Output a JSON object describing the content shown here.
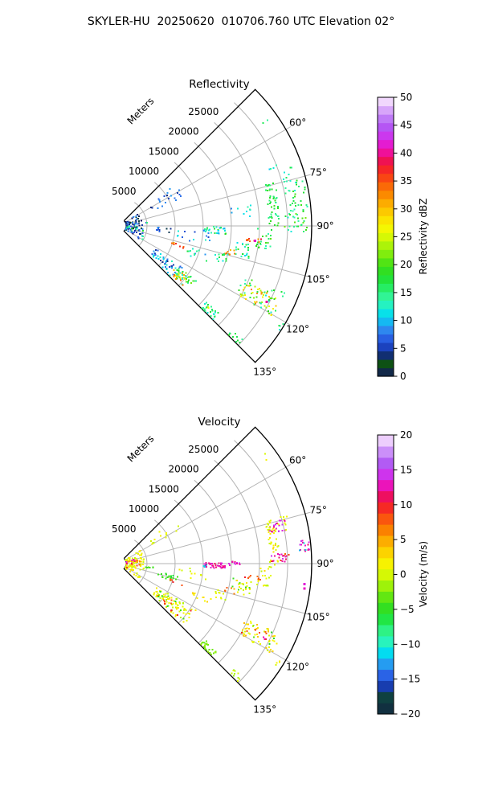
{
  "header": {
    "title": "SKYLER-HU  20250620  010706.760 UTC Elevation 02°"
  },
  "colors": {
    "background": "#ffffff",
    "grid": "#b3b3b3",
    "outline": "#000000",
    "text": "#000000"
  },
  "colormap": {
    "name": "spectral-radar",
    "stops": [
      [
        0.0,
        "#141464"
      ],
      [
        0.045,
        "#0e5213"
      ],
      [
        0.08,
        "#112a7e"
      ],
      [
        0.11,
        "#1c46c8"
      ],
      [
        0.14,
        "#2a63e6"
      ],
      [
        0.17,
        "#2f8cf0"
      ],
      [
        0.195,
        "#17b5f2"
      ],
      [
        0.215,
        "#00d9f5"
      ],
      [
        0.245,
        "#14ecd7"
      ],
      [
        0.27,
        "#36f7ac"
      ],
      [
        0.3,
        "#2ef285"
      ],
      [
        0.33,
        "#20e94f"
      ],
      [
        0.365,
        "#23dd27"
      ],
      [
        0.41,
        "#52e414"
      ],
      [
        0.45,
        "#90f00c"
      ],
      [
        0.49,
        "#c9f706"
      ],
      [
        0.525,
        "#f2fa02"
      ],
      [
        0.555,
        "#fbe900"
      ],
      [
        0.59,
        "#fcca00"
      ],
      [
        0.625,
        "#fca800"
      ],
      [
        0.66,
        "#fb8100"
      ],
      [
        0.695,
        "#fa5c0c"
      ],
      [
        0.725,
        "#f93618"
      ],
      [
        0.755,
        "#f31b31"
      ],
      [
        0.78,
        "#ee0f60"
      ],
      [
        0.8,
        "#f00f93"
      ],
      [
        0.825,
        "#ea15c4"
      ],
      [
        0.85,
        "#d729ea"
      ],
      [
        0.88,
        "#bc49f2"
      ],
      [
        0.905,
        "#b060f5"
      ],
      [
        0.935,
        "#c788f8"
      ],
      [
        0.965,
        "#e0b4fb"
      ],
      [
        0.985,
        "#f1d7fd"
      ],
      [
        1.0,
        "#fcf1fe"
      ]
    ]
  },
  "chart_data": [
    {
      "type": "radar_ppi_sector",
      "title": "Reflectivity",
      "radial_axis_label": "Meters",
      "azimuth_span_deg": [
        45,
        135
      ],
      "azimuth_tick_labels_deg": [
        60,
        75,
        90,
        105,
        120,
        135
      ],
      "azimuth_gridlines_deg": [
        60,
        75,
        90,
        105,
        120
      ],
      "range_tick_labels_m": [
        5000,
        10000,
        15000,
        20000,
        25000
      ],
      "range_rings_m": [
        5000,
        10000,
        15000,
        20000,
        25000,
        30000
      ],
      "range_min_m": 1300,
      "range_max_m": 34300,
      "colorbar": {
        "label": "Reflectivity dBZ",
        "min": 0,
        "max": 50,
        "ticks": [
          0,
          5,
          10,
          15,
          20,
          25,
          30,
          35,
          40,
          45,
          50
        ],
        "steps": 33
      },
      "units": {
        "az": "deg",
        "rng": "km",
        "v": "dBZ"
      },
      "echo_clusters": [
        {
          "az": 90,
          "daz": 33,
          "rng": 2.3,
          "drng": 2.2,
          "v": 4,
          "dv": 5,
          "n": 95
        },
        {
          "az": 101,
          "daz": 20,
          "rng": 3.2,
          "drng": 2.0,
          "v": 12,
          "dv": 6,
          "n": 28
        },
        {
          "az": 60,
          "daz": 6,
          "rng": 9.5,
          "drng": 3.0,
          "v": 6,
          "dv": 3,
          "n": 20
        },
        {
          "az": 54,
          "daz": 1,
          "rng": 32.0,
          "drng": 0.6,
          "v": 16,
          "dv": 2,
          "n": 2
        },
        {
          "az": 92.5,
          "daz": 2,
          "rng": 17.0,
          "drng": 2.2,
          "v": 14,
          "dv": 5,
          "n": 30
        },
        {
          "az": 78,
          "daz": 4,
          "rng": 27.8,
          "drng": 0.9,
          "v": 17,
          "dv": 3,
          "n": 24
        },
        {
          "az": 86,
          "daz": 4.5,
          "rng": 27.6,
          "drng": 1.0,
          "v": 16,
          "dv": 4,
          "n": 24
        },
        {
          "az": 95,
          "daz": 4,
          "rng": 26.0,
          "drng": 1.3,
          "v": 17,
          "dv": 4,
          "n": 22
        },
        {
          "az": 96,
          "daz": 0.9,
          "rng": 24.0,
          "drng": 1.6,
          "v": 35,
          "dv": 3,
          "n": 10
        },
        {
          "az": 96,
          "daz": 0.3,
          "rng": 24.0,
          "drng": 0.4,
          "v": 41,
          "dv": 1,
          "n": 1,
          "sz": 3
        },
        {
          "az": 101,
          "daz": 3,
          "rng": 22.5,
          "drng": 1.4,
          "v": 16,
          "dv": 5,
          "n": 22
        },
        {
          "az": 103.5,
          "daz": 1.5,
          "rng": 20.3,
          "drng": 1.0,
          "v": 33,
          "dv": 3,
          "n": 8
        },
        {
          "az": 107,
          "daz": 2.5,
          "rng": 19.0,
          "drng": 1.1,
          "v": 15,
          "dv": 4,
          "n": 12
        },
        {
          "az": 80,
          "daz": 6,
          "rng": 32.0,
          "drng": 1.8,
          "v": 16,
          "dv": 4,
          "n": 40
        },
        {
          "az": 89,
          "daz": 3,
          "rng": 31.5,
          "drng": 2.0,
          "v": 17,
          "dv": 5,
          "n": 26
        },
        {
          "az": 108,
          "daz": 1.2,
          "rng": 10.8,
          "drng": 1.3,
          "v": 33,
          "dv": 4,
          "n": 8
        },
        {
          "az": 97,
          "daz": 5,
          "rng": 13.5,
          "drng": 3.0,
          "v": 10,
          "dv": 5,
          "n": 14
        },
        {
          "az": 128,
          "daz": 6,
          "rng": 10.5,
          "drng": 3.0,
          "v": 9,
          "dv": 5,
          "n": 48
        },
        {
          "az": 129,
          "daz": 4,
          "rng": 15.0,
          "drng": 2.0,
          "v": 18,
          "dv": 6,
          "n": 38
        },
        {
          "az": 128,
          "daz": 2.5,
          "rng": 14.0,
          "drng": 1.5,
          "v": 28,
          "dv": 3,
          "n": 7
        },
        {
          "az": 132,
          "daz": 1.5,
          "rng": 14.0,
          "drng": 1.5,
          "v": 31,
          "dv": 4,
          "n": 9
        },
        {
          "az": 117,
          "daz": 3.5,
          "rng": 28.0,
          "drng": 3.5,
          "v": 27,
          "dv": 7,
          "n": 45
        },
        {
          "az": 116,
          "daz": 4.5,
          "rng": 28.0,
          "drng": 4.0,
          "v": 16,
          "dv": 4,
          "n": 28
        },
        {
          "az": 117.3,
          "daz": 0.3,
          "rng": 29.3,
          "drng": 0.4,
          "v": 41,
          "dv": 1,
          "n": 1,
          "sz": 3
        },
        {
          "az": 133,
          "daz": 2,
          "rng": 22.0,
          "drng": 1.6,
          "v": 15,
          "dv": 3,
          "n": 26
        },
        {
          "az": 133,
          "daz": 0.7,
          "rng": 22.0,
          "drng": 0.7,
          "v": 25,
          "dv": 2,
          "n": 2
        },
        {
          "az": 133.5,
          "daz": 1.3,
          "rng": 29.0,
          "drng": 1.6,
          "v": 16,
          "dv": 3,
          "n": 10
        },
        {
          "az": 122,
          "daz": 1.2,
          "rng": 33.5,
          "drng": 0.8,
          "v": 15,
          "dv": 3,
          "n": 4
        },
        {
          "az": 70,
          "daz": 4,
          "rng": 30.0,
          "drng": 2.5,
          "v": 14,
          "dv": 4,
          "n": 8
        },
        {
          "az": 84,
          "daz": 3,
          "rng": 22.0,
          "drng": 2.0,
          "v": 12,
          "dv": 5,
          "n": 10
        },
        {
          "az": 110,
          "daz": 3,
          "rng": 15.0,
          "drng": 2.0,
          "v": 13,
          "dv": 5,
          "n": 12
        },
        {
          "az": 95,
          "daz": 3,
          "rng": 8.0,
          "drng": 1.5,
          "v": 7,
          "dv": 4,
          "n": 10
        }
      ]
    },
    {
      "type": "radar_ppi_sector",
      "title": "Velocity",
      "radial_axis_label": "Meters",
      "azimuth_span_deg": [
        45,
        135
      ],
      "azimuth_tick_labels_deg": [
        60,
        75,
        90,
        105,
        120,
        135
      ],
      "azimuth_gridlines_deg": [
        60,
        75,
        90,
        105,
        120
      ],
      "range_tick_labels_m": [
        5000,
        10000,
        15000,
        20000,
        25000
      ],
      "range_rings_m": [
        5000,
        10000,
        15000,
        20000,
        25000,
        30000
      ],
      "range_min_m": 1300,
      "range_max_m": 34300,
      "colorbar": {
        "label": "Velocity (m/s)",
        "min": -20,
        "max": 20,
        "ticks": [
          -20,
          -15,
          -10,
          -5,
          0,
          5,
          10,
          15,
          20
        ],
        "steps": 25
      },
      "units": {
        "az": "deg",
        "rng": "km",
        "v": "m/s"
      },
      "echo_clusters": [
        {
          "az": 92,
          "daz": 34,
          "rng": 2.3,
          "drng": 2.2,
          "v": 1,
          "dv": 1.6,
          "n": 95
        },
        {
          "az": 95,
          "daz": 22,
          "rng": 2.8,
          "drng": 2.0,
          "v": 6.5,
          "dv": 2.5,
          "n": 14
        },
        {
          "az": 82,
          "daz": 10,
          "rng": 1.6,
          "drng": 1.2,
          "v": 12.5,
          "dv": 1.5,
          "n": 6
        },
        {
          "az": 56,
          "daz": 5,
          "rng": 9.5,
          "drng": 3.0,
          "v": 0.5,
          "dv": 1.2,
          "n": 12
        },
        {
          "az": 54,
          "daz": 1,
          "rng": 32.0,
          "drng": 0.6,
          "v": 1,
          "dv": 1,
          "n": 2
        },
        {
          "az": 105,
          "daz": 3,
          "rng": 9.0,
          "drng": 1.8,
          "v": -5,
          "dv": 1.2,
          "n": 18
        },
        {
          "az": 97,
          "daz": 2,
          "rng": 5.5,
          "drng": 1.0,
          "v": -4,
          "dv": 1,
          "n": 6
        },
        {
          "az": 91,
          "daz": 1.6,
          "rng": 17.0,
          "drng": 1.9,
          "v": 12.5,
          "dv": 1.5,
          "n": 40
        },
        {
          "az": 91.5,
          "daz": 1,
          "rng": 15.2,
          "drng": 0.8,
          "v": -12,
          "dv": 2,
          "n": 4
        },
        {
          "az": 89.8,
          "daz": 1,
          "rng": 20.5,
          "drng": 1.1,
          "v": 13,
          "dv": 1.5,
          "n": 12
        },
        {
          "az": 77,
          "daz": 2,
          "rng": 29.0,
          "drng": 1.6,
          "v": 13,
          "dv": 1.8,
          "n": 22
        },
        {
          "az": 76.5,
          "daz": 2.6,
          "rng": 29.0,
          "drng": 2.2,
          "v": 1,
          "dv": 1.5,
          "n": 12
        },
        {
          "az": 84.5,
          "daz": 1.8,
          "rng": 33.0,
          "drng": 1.2,
          "v": 13,
          "dv": 2,
          "n": 14
        },
        {
          "az": 84.5,
          "daz": 1.5,
          "rng": 33.0,
          "drng": 1.5,
          "v": -11,
          "dv": 3,
          "n": 3
        },
        {
          "az": 88,
          "daz": 1.5,
          "rng": 28.5,
          "drng": 1.4,
          "v": 13,
          "dv": 2,
          "n": 16
        },
        {
          "az": 88,
          "daz": 1.8,
          "rng": 28.5,
          "drng": 1.8,
          "v": 8.5,
          "dv": 1.5,
          "n": 5
        },
        {
          "az": 78,
          "daz": 4,
          "rng": 27.8,
          "drng": 0.9,
          "v": 1,
          "dv": 1.6,
          "n": 18
        },
        {
          "az": 86,
          "daz": 4.5,
          "rng": 27.6,
          "drng": 1.0,
          "v": 1.5,
          "dv": 2,
          "n": 18
        },
        {
          "az": 95,
          "daz": 4,
          "rng": 26.0,
          "drng": 1.3,
          "v": 1,
          "dv": 2,
          "n": 20
        },
        {
          "az": 96,
          "daz": 0.9,
          "rng": 24.0,
          "drng": 1.5,
          "v": 8.5,
          "dv": 1.5,
          "n": 8
        },
        {
          "az": 101,
          "daz": 3,
          "rng": 22.5,
          "drng": 1.4,
          "v": 1,
          "dv": 2,
          "n": 20
        },
        {
          "az": 103.5,
          "daz": 1.5,
          "rng": 20.3,
          "drng": 1.0,
          "v": 6,
          "dv": 2,
          "n": 6
        },
        {
          "az": 107,
          "daz": 2.5,
          "rng": 19.0,
          "drng": 1.1,
          "v": 0.5,
          "dv": 1.5,
          "n": 10
        },
        {
          "az": 100,
          "daz": 3,
          "rng": 22.0,
          "drng": 2.0,
          "v": -4,
          "dv": 1,
          "n": 6
        },
        {
          "az": 97,
          "daz": 1,
          "rng": 33.0,
          "drng": 0.7,
          "v": 13,
          "dv": 1,
          "n": 2,
          "sz": 3
        },
        {
          "az": 127,
          "daz": 6,
          "rng": 12.0,
          "drng": 4.0,
          "v": 0.5,
          "dv": 2,
          "n": 80
        },
        {
          "az": 127,
          "daz": 5,
          "rng": 12.0,
          "drng": 3.5,
          "v": 8.5,
          "dv": 1.5,
          "n": 10
        },
        {
          "az": 127,
          "daz": 5,
          "rng": 12.0,
          "drng": 3.5,
          "v": -5,
          "dv": 1.5,
          "n": 8
        },
        {
          "az": 108,
          "daz": 1.2,
          "rng": 10.8,
          "drng": 1.3,
          "v": 8,
          "dv": 2,
          "n": 6
        },
        {
          "az": 117,
          "daz": 3.5,
          "rng": 28.0,
          "drng": 3.5,
          "v": 2,
          "dv": 2.5,
          "n": 50
        },
        {
          "az": 117,
          "daz": 3,
          "rng": 28.0,
          "drng": 3.0,
          "v": 8.5,
          "dv": 1.5,
          "n": 8
        },
        {
          "az": 117,
          "daz": 3,
          "rng": 28.0,
          "drng": 3.0,
          "v": -4,
          "dv": 1.5,
          "n": 5
        },
        {
          "az": 117.3,
          "daz": 0.4,
          "rng": 29.3,
          "drng": 0.5,
          "v": 12.5,
          "dv": 1,
          "n": 2
        },
        {
          "az": 133,
          "daz": 2,
          "rng": 22.0,
          "drng": 1.6,
          "v": -2.5,
          "dv": 1,
          "n": 26
        },
        {
          "az": 133.5,
          "daz": 1.3,
          "rng": 29.0,
          "drng": 1.6,
          "v": -1,
          "dv": 1.5,
          "n": 10
        },
        {
          "az": 122,
          "daz": 1.2,
          "rng": 33.5,
          "drng": 0.8,
          "v": 1,
          "dv": 1.5,
          "n": 4
        },
        {
          "az": 97,
          "daz": 5,
          "rng": 13.5,
          "drng": 3.0,
          "v": 1,
          "dv": 1.5,
          "n": 10
        },
        {
          "az": 113,
          "daz": 2,
          "rng": 16.0,
          "drng": 2.0,
          "v": 3,
          "dv": 3,
          "n": 10
        }
      ]
    }
  ]
}
